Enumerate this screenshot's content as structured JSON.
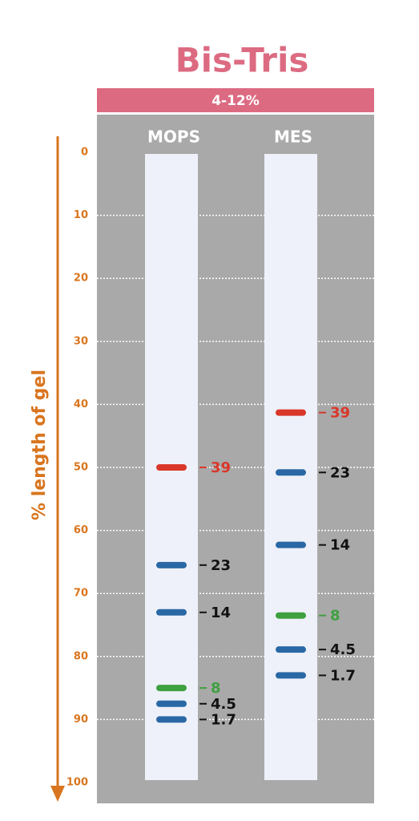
{
  "chart_data": {
    "type": "gel",
    "title": "Bis-Tris",
    "subtitle": "4-12%",
    "y_label": "% length of gel",
    "ylim": [
      0,
      100
    ],
    "yticks": [
      0,
      10,
      20,
      30,
      40,
      50,
      60,
      70,
      80,
      90,
      100
    ],
    "grid": true,
    "series": [
      {
        "name": "MOPS",
        "values": [
          50,
          65.5,
          73,
          85,
          87.5,
          90
        ],
        "band_labels": [
          "39",
          "23",
          "14",
          "8",
          "4.5",
          "1.7"
        ],
        "colors": [
          "#d9372a",
          "#2a68a5",
          "#2a68a5",
          "#3fa040",
          "#2a68a5",
          "#2a68a5"
        ],
        "label_colors": [
          "#d9372a",
          "#111111",
          "#111111",
          "#3fa040",
          "#111111",
          "#111111"
        ]
      },
      {
        "name": "MES",
        "values": [
          41.3,
          50.8,
          62.3,
          73.5,
          78.9,
          83
        ],
        "band_labels": [
          "39",
          "23",
          "14",
          "8",
          "4.5",
          "1.7"
        ],
        "colors": [
          "#d9372a",
          "#2a68a5",
          "#2a68a5",
          "#3fa040",
          "#2a68a5",
          "#2a68a5"
        ],
        "label_colors": [
          "#d9372a",
          "#111111",
          "#111111",
          "#3fa040",
          "#111111",
          "#111111"
        ]
      }
    ]
  }
}
